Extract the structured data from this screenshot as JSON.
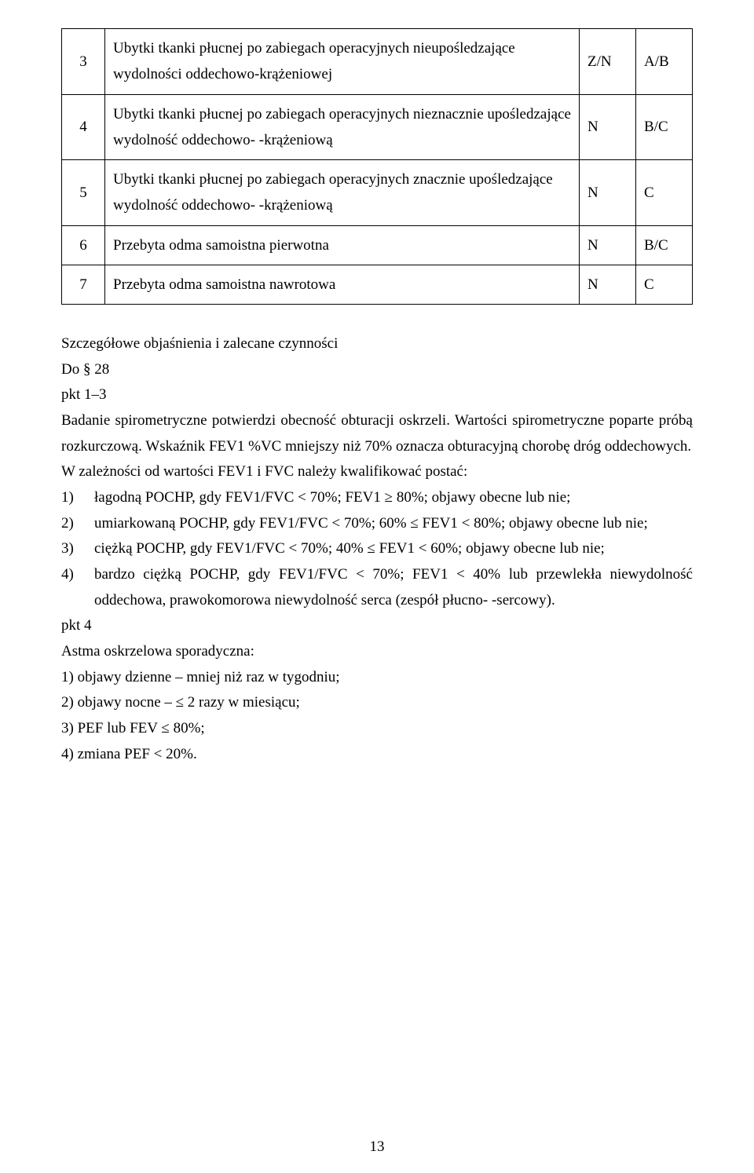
{
  "table": {
    "rows": [
      {
        "n": "3",
        "text": "Ubytki tkanki płucnej po zabiegach operacyjnych nieupośledzające wydolności oddechowo-krążeniowej",
        "c2": "Z/N",
        "c3": "A/B"
      },
      {
        "n": "4",
        "text": "Ubytki tkanki płucnej po zabiegach operacyjnych nieznacznie upośledzające wydolność oddechowo-\n-krążeniową",
        "c2": "N",
        "c3": "B/C"
      },
      {
        "n": "5",
        "text": "Ubytki tkanki płucnej po zabiegach operacyjnych znacznie upośledzające wydolność oddechowo-\n-krążeniową",
        "c2": "N",
        "c3": "C"
      },
      {
        "n": "6",
        "text": "Przebyta odma samoistna pierwotna",
        "c2": "N",
        "c3": "B/C"
      },
      {
        "n": "7",
        "text": "Przebyta odma samoistna nawrotowa",
        "c2": "N",
        "c3": "C"
      }
    ]
  },
  "heading": "Szczegółowe objaśnienia i zalecane czynności",
  "do": "Do § 28",
  "pkt13": "pkt 1–3",
  "para1": "Badanie spirometryczne potwierdzi obecność obturacji oskrzeli. Wartości spirometryczne poparte próbą rozkurczową. Wskaźnik FEV1 %VC mniejszy niż 70% oznacza obturacyjną chorobę dróg oddechowych.",
  "para2": "W zależności od wartości FEV1 i FVC należy kwalifikować postać:",
  "list": [
    "łagodną POCHP, gdy FEV1/FVC < 70%; FEV1 ≥ 80%; objawy obecne lub nie;",
    "umiarkowaną POCHP, gdy FEV1/FVC < 70%; 60% ≤ FEV1 < 80%; objawy obecne lub nie;",
    "ciężką POCHP, gdy FEV1/FVC < 70%; 40% ≤ FEV1 < 60%; objawy obecne lub nie;",
    "bardzo ciężką  POCHP, gdy FEV1/FVC < 70%; FEV1 < 40% lub przewlekła niewydolność oddechowa, prawokomorowa niewydolność serca (zespół płucno-\n-sercowy)."
  ],
  "pkt4": "pkt 4",
  "astma_title": "Astma oskrzelowa sporadyczna:",
  "astma_items": [
    "1) objawy dzienne – mniej niż raz w tygodniu;",
    "2) objawy nocne – ≤ 2 razy w miesiącu;",
    "3) PEF lub FEV ≤ 80%;",
    "4) zmiana PEF < 20%."
  ],
  "page_number": "13"
}
